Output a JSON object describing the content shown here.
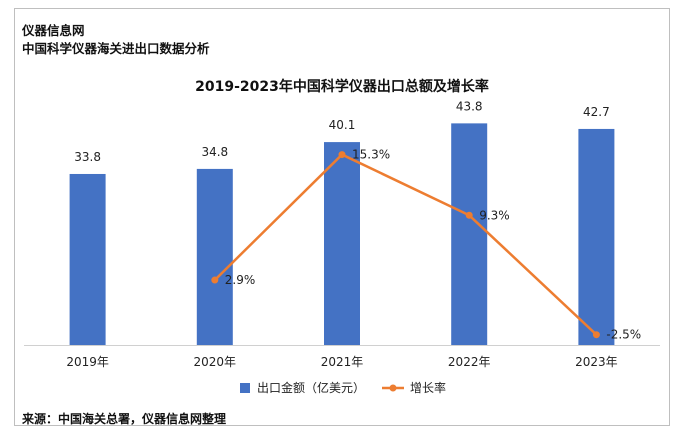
{
  "header": {
    "site": "仪器信息网",
    "subtitle": "中国科学仪器海关进出口数据分析"
  },
  "source": "来源：中国海关总署，仪器信息网整理",
  "colors": {
    "bar": "#4472C4",
    "line": "#ED7D31"
  },
  "chart_data": {
    "type": "bar",
    "title": "2019-2023年中国科学仪器出口总额及增长率",
    "categories": [
      "2019年",
      "2020年",
      "2021年",
      "2022年",
      "2023年"
    ],
    "series": [
      {
        "name": "出口金额（亿美元）",
        "type": "bar",
        "axis": "left",
        "values": [
          33.8,
          34.8,
          40.1,
          43.8,
          42.7
        ],
        "labels": [
          "33.8",
          "34.8",
          "40.1",
          "43.8",
          "42.7"
        ]
      },
      {
        "name": "增长率",
        "type": "line",
        "axis": "right",
        "values": [
          null,
          2.9,
          15.3,
          9.3,
          -2.5
        ],
        "labels": [
          "",
          "2.9%",
          "15.3%",
          "9.3%",
          "-2.5%"
        ]
      }
    ],
    "ylim": [
      0,
      50
    ],
    "y2lim": [
      -5,
      20
    ],
    "grid": false,
    "legend": "bottom"
  }
}
